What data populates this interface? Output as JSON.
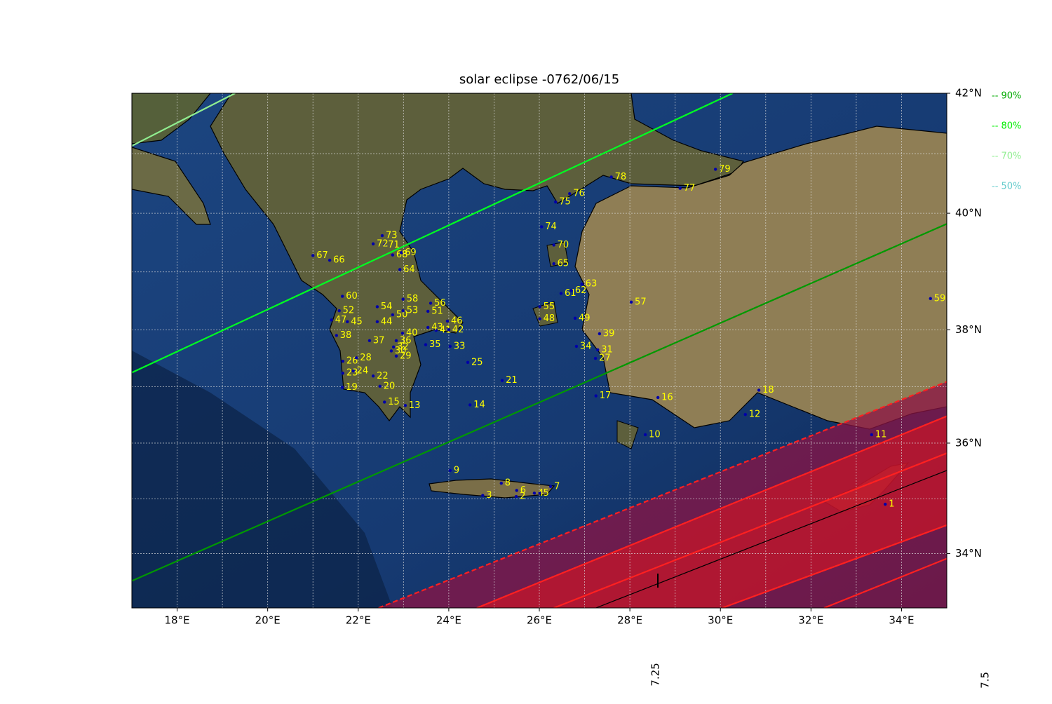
{
  "chart_data": {
    "type": "map",
    "title": "solar eclipse -0762/06/15",
    "xlim": [
      17,
      35
    ],
    "ylim": [
      33,
      42
    ],
    "xticks": [
      {
        "value": 18,
        "label": "18°E"
      },
      {
        "value": 20,
        "label": "20°E"
      },
      {
        "value": 22,
        "label": "22°E"
      },
      {
        "value": 24,
        "label": "24°E"
      },
      {
        "value": 26,
        "label": "26°E"
      },
      {
        "value": 28,
        "label": "28°E"
      },
      {
        "value": 30,
        "label": "30°E"
      },
      {
        "value": 32,
        "label": "32°E"
      },
      {
        "value": 34,
        "label": "34°E"
      }
    ],
    "yticks": [
      {
        "value": 34,
        "label": "34°N"
      },
      {
        "value": 36,
        "label": "36°N"
      },
      {
        "value": 38,
        "label": "38°N"
      },
      {
        "value": 40,
        "label": "40°N"
      },
      {
        "value": 42,
        "label": "42°N"
      }
    ],
    "grid_lon": [
      17,
      18,
      19,
      20,
      21,
      22,
      23,
      24,
      25,
      26,
      27,
      28,
      29,
      30,
      31,
      32,
      33,
      34,
      35
    ],
    "grid_lat": [
      33,
      34,
      35,
      36,
      37,
      38,
      39,
      40,
      41,
      42
    ],
    "legend": [
      {
        "label": "-- 90%",
        "color": "#00aa00"
      },
      {
        "label": "-- 80%",
        "color": "#00ee00"
      },
      {
        "label": "-- 70%",
        "color": "#90ee90"
      },
      {
        "label": "-- 50%",
        "color": "#66cccc"
      }
    ],
    "lines": [
      {
        "color": "#90ee90",
        "dashed": false,
        "lon": [
          17,
          19.28
        ],
        "lat": [
          41.13,
          42
        ]
      },
      {
        "color": "#00ff22",
        "dashed": false,
        "lon": [
          17,
          30.27
        ],
        "lat": [
          37.25,
          42
        ]
      },
      {
        "color": "#009900",
        "dashed": false,
        "lon": [
          17,
          35
        ],
        "lat": [
          33.5,
          39.82
        ]
      },
      {
        "color": "#ff2020",
        "dashed": true,
        "lon": [
          22.45,
          35
        ],
        "lat": [
          33,
          37.09
        ]
      },
      {
        "color": "#ff2020",
        "dashed": false,
        "lon": [
          24.62,
          35
        ],
        "lat": [
          33,
          36.48
        ]
      },
      {
        "color": "#ff2020",
        "dashed": false,
        "lon": [
          26.32,
          35
        ],
        "lat": [
          33,
          35.82
        ]
      },
      {
        "color": "#000000",
        "dashed": false,
        "lon": [
          27.25,
          35
        ],
        "lat": [
          33,
          35.51
        ]
      },
      {
        "color": "#ff2020",
        "dashed": false,
        "lon": [
          30.04,
          35
        ],
        "lat": [
          33,
          34.52
        ]
      },
      {
        "color": "#ff2020",
        "dashed": false,
        "lon": [
          32.29,
          35
        ],
        "lat": [
          33,
          33.91
        ]
      }
    ],
    "bottom_labels": [
      "7.25",
      "7.5"
    ],
    "sites": [
      {
        "label": "1",
        "lon": 33.64,
        "lat": 34.9
      },
      {
        "label": "2",
        "lon": 25.49,
        "lat": 35.04
      },
      {
        "label": "3",
        "lon": 24.75,
        "lat": 35.06
      },
      {
        "label": "4",
        "lon": 25.89,
        "lat": 35.1
      },
      {
        "label": "5",
        "lon": 26.01,
        "lat": 35.1
      },
      {
        "label": "6",
        "lon": 25.5,
        "lat": 35.15
      },
      {
        "label": "7",
        "lon": 26.25,
        "lat": 35.22
      },
      {
        "label": "8",
        "lon": 25.16,
        "lat": 35.28
      },
      {
        "label": "9",
        "lon": 24.03,
        "lat": 35.51
      },
      {
        "label": "10",
        "lon": 28.34,
        "lat": 36.15
      },
      {
        "label": "11",
        "lon": 33.34,
        "lat": 36.15
      },
      {
        "label": "12",
        "lon": 30.55,
        "lat": 36.51
      },
      {
        "label": "13",
        "lon": 23.04,
        "lat": 36.67
      },
      {
        "label": "14",
        "lon": 24.47,
        "lat": 36.68
      },
      {
        "label": "15",
        "lon": 22.58,
        "lat": 36.73
      },
      {
        "label": "16",
        "lon": 28.62,
        "lat": 36.81
      },
      {
        "label": "17",
        "lon": 27.25,
        "lat": 36.84
      },
      {
        "label": "18",
        "lon": 30.85,
        "lat": 36.94
      },
      {
        "label": "19",
        "lon": 21.65,
        "lat": 36.99
      },
      {
        "label": "20",
        "lon": 22.48,
        "lat": 37.01
      },
      {
        "label": "21",
        "lon": 25.18,
        "lat": 37.11
      },
      {
        "label": "22",
        "lon": 22.33,
        "lat": 37.19
      },
      {
        "label": "23",
        "lon": 21.66,
        "lat": 37.24
      },
      {
        "label": "24",
        "lon": 21.89,
        "lat": 37.28
      },
      {
        "label": "25",
        "lon": 24.42,
        "lat": 37.43
      },
      {
        "label": "26",
        "lon": 21.66,
        "lat": 37.45
      },
      {
        "label": "27",
        "lon": 27.24,
        "lat": 37.5
      },
      {
        "label": "28",
        "lon": 21.96,
        "lat": 37.51
      },
      {
        "label": "29",
        "lon": 22.84,
        "lat": 37.54
      },
      {
        "label": "30",
        "lon": 22.73,
        "lat": 37.63
      },
      {
        "label": "31",
        "lon": 27.29,
        "lat": 37.65
      },
      {
        "label": "32",
        "lon": 22.78,
        "lat": 37.7
      },
      {
        "label": "33",
        "lon": 24.03,
        "lat": 37.71
      },
      {
        "label": "34",
        "lon": 26.82,
        "lat": 37.71
      },
      {
        "label": "35",
        "lon": 23.49,
        "lat": 37.74
      },
      {
        "label": "36",
        "lon": 22.84,
        "lat": 37.81
      },
      {
        "label": "37",
        "lon": 22.25,
        "lat": 37.81
      },
      {
        "label": "38",
        "lon": 21.52,
        "lat": 37.9
      },
      {
        "label": "39",
        "lon": 27.33,
        "lat": 37.93
      },
      {
        "label": "40",
        "lon": 22.98,
        "lat": 37.94
      },
      {
        "label": "41",
        "lon": 23.72,
        "lat": 37.99
      },
      {
        "label": "42",
        "lon": 24.0,
        "lat": 38.0
      },
      {
        "label": "43",
        "lon": 23.54,
        "lat": 38.04
      },
      {
        "label": "44",
        "lon": 22.42,
        "lat": 38.14
      },
      {
        "label": "45",
        "lon": 21.76,
        "lat": 38.14
      },
      {
        "label": "46",
        "lon": 23.97,
        "lat": 38.15
      },
      {
        "label": "47",
        "lon": 21.41,
        "lat": 38.17
      },
      {
        "label": "48",
        "lon": 26.01,
        "lat": 38.19
      },
      {
        "label": "49",
        "lon": 26.79,
        "lat": 38.2
      },
      {
        "label": "50",
        "lon": 22.76,
        "lat": 38.26
      },
      {
        "label": "51",
        "lon": 23.54,
        "lat": 38.32
      },
      {
        "label": "52",
        "lon": 21.58,
        "lat": 38.33
      },
      {
        "label": "53",
        "lon": 22.99,
        "lat": 38.33
      },
      {
        "label": "54",
        "lon": 22.42,
        "lat": 38.4
      },
      {
        "label": "55",
        "lon": 26.01,
        "lat": 38.4
      },
      {
        "label": "56",
        "lon": 23.6,
        "lat": 38.46
      },
      {
        "label": "57",
        "lon": 28.03,
        "lat": 38.48
      },
      {
        "label": "58",
        "lon": 22.99,
        "lat": 38.53
      },
      {
        "label": "59",
        "lon": 34.64,
        "lat": 38.54
      },
      {
        "label": "60",
        "lon": 21.65,
        "lat": 38.58
      },
      {
        "label": "61",
        "lon": 26.48,
        "lat": 38.63
      },
      {
        "label": "62",
        "lon": 26.71,
        "lat": 38.68
      },
      {
        "label": "63",
        "lon": 26.94,
        "lat": 38.79
      },
      {
        "label": "64",
        "lon": 22.92,
        "lat": 39.04
      },
      {
        "label": "65",
        "lon": 26.32,
        "lat": 39.14
      },
      {
        "label": "66",
        "lon": 21.37,
        "lat": 39.2
      },
      {
        "label": "67",
        "lon": 21.0,
        "lat": 39.28
      },
      {
        "label": "68",
        "lon": 22.76,
        "lat": 39.29
      },
      {
        "label": "69",
        "lon": 22.95,
        "lat": 39.33
      },
      {
        "label": "70",
        "lon": 26.32,
        "lat": 39.46
      },
      {
        "label": "71",
        "lon": 22.58,
        "lat": 39.46
      },
      {
        "label": "72",
        "lon": 22.33,
        "lat": 39.48
      },
      {
        "label": "73",
        "lon": 22.53,
        "lat": 39.62
      },
      {
        "label": "74",
        "lon": 26.05,
        "lat": 39.77
      },
      {
        "label": "75",
        "lon": 26.36,
        "lat": 40.19
      },
      {
        "label": "76",
        "lon": 26.67,
        "lat": 40.33
      },
      {
        "label": "77",
        "lon": 29.11,
        "lat": 40.42
      },
      {
        "label": "78",
        "lon": 27.59,
        "lat": 40.61
      },
      {
        "label": "79",
        "lon": 29.89,
        "lat": 40.74
      }
    ]
  }
}
